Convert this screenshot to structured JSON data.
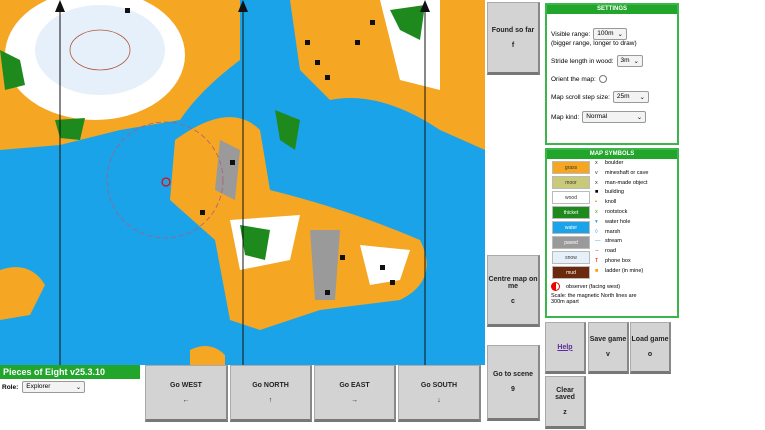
{
  "title": "Pieces of Eight v25.3.10",
  "role": {
    "label": "Role:",
    "value": "Explorer"
  },
  "buttons": {
    "found": {
      "label": "Found so far",
      "key": "f"
    },
    "centre": {
      "label": "Centre map on me",
      "key": "c"
    },
    "scene": {
      "label": "Go to scene",
      "key": "9"
    },
    "west": {
      "label": "Go WEST",
      "key": "←"
    },
    "north": {
      "label": "Go NORTH",
      "key": "↑"
    },
    "east": {
      "label": "Go EAST",
      "key": "→"
    },
    "south": {
      "label": "Go SOUTH",
      "key": "↓"
    },
    "help": {
      "label": "Help"
    },
    "save": {
      "label": "Save game",
      "key": "v"
    },
    "load": {
      "label": "Load game",
      "key": "o"
    },
    "clear": {
      "label": "Clear saved",
      "key": "z"
    }
  },
  "settings": {
    "title": "SETTINGS",
    "visible_range": {
      "label": "Visible range:",
      "value": "100m",
      "note": "(bigger range, longer to draw)"
    },
    "stride": {
      "label": "Stride length in wood:",
      "value": "3m"
    },
    "orient": {
      "label": "Orient the map:",
      "checked": false
    },
    "scroll": {
      "label": "Map scroll step size:",
      "value": "25m"
    },
    "kind": {
      "label": "Map kind:",
      "value": "Normal"
    }
  },
  "symbols": {
    "title": "MAP SYMBOLS",
    "swatches": [
      {
        "label": "grass",
        "color": "#f5a623"
      },
      {
        "label": "moor",
        "color": "#c9c97a"
      },
      {
        "label": "wood",
        "color": "#ffffff"
      },
      {
        "label": "thicket",
        "color": "#1e8a1e"
      },
      {
        "label": "water",
        "color": "#1aa3e8"
      },
      {
        "label": "paved",
        "color": "#9a9a9a"
      },
      {
        "label": "snow",
        "color": "#e6f0fb"
      },
      {
        "label": "mud",
        "color": "#6b2a0e"
      }
    ],
    "items": [
      {
        "glyph": "x",
        "label": "boulder"
      },
      {
        "glyph": "v",
        "label": "mineshaft or cave"
      },
      {
        "glyph": "x",
        "label": "man-made object"
      },
      {
        "glyph": "■",
        "label": "building"
      },
      {
        "glyph": "•",
        "label": "knoll"
      },
      {
        "glyph": "x",
        "label": "rootstock"
      },
      {
        "glyph": "▾",
        "label": "water hole"
      },
      {
        "glyph": "◊",
        "label": "marsh"
      },
      {
        "glyph": "—",
        "label": "stream"
      },
      {
        "glyph": "--",
        "label": "road"
      },
      {
        "glyph": "T",
        "label": "phone box"
      },
      {
        "glyph": "■",
        "label": "ladder (in mine)"
      }
    ],
    "observer": "observer (facing west)",
    "scale": "Scale: the magnetic North lines are 300m apart"
  }
}
